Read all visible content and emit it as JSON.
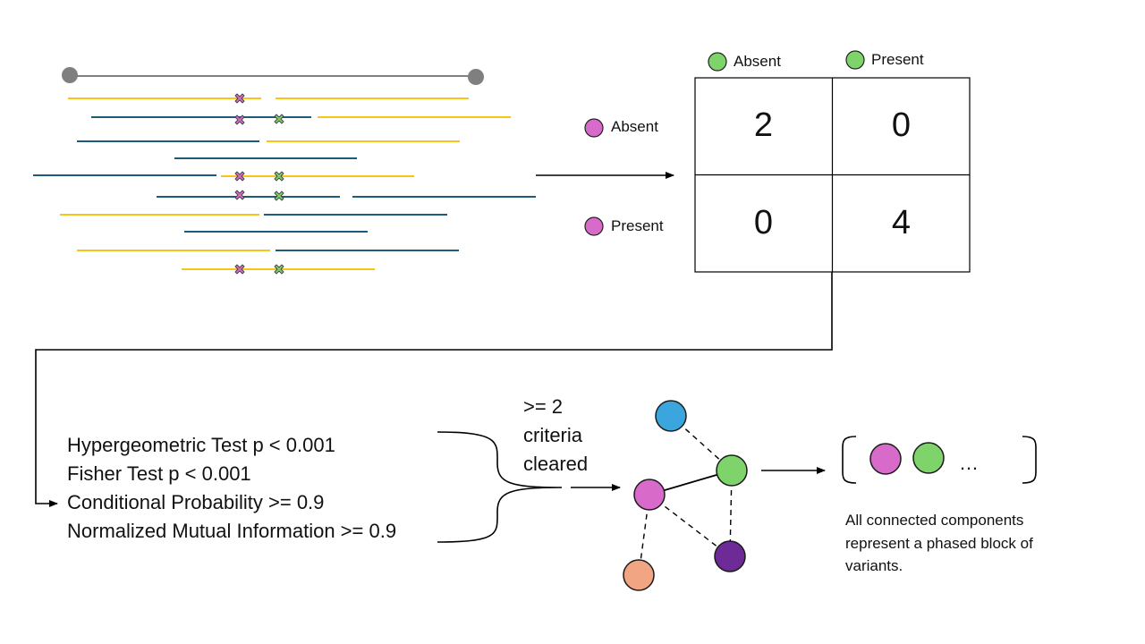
{
  "colors": {
    "yellow_read": "#F5C518",
    "blue_read": "#1F5A7A",
    "variant_a": "#D86BC9",
    "variant_b": "#7ED36B",
    "node_blue": "#3AA6DD",
    "node_purple": "#6E2A96",
    "node_orange": "#F2A582",
    "line": "#000000",
    "grey": "#7F7F7F"
  },
  "contingency": {
    "col_headers": [
      {
        "label": "Absent",
        "icon": "green-variant-dot"
      },
      {
        "label": "Present",
        "icon": "green-variant-dot"
      }
    ],
    "row_headers": [
      {
        "label": "Absent",
        "icon": "pink-variant-dot"
      },
      {
        "label": "Present",
        "icon": "pink-variant-dot"
      }
    ],
    "cells": [
      [
        "2",
        "0"
      ],
      [
        "0",
        "4"
      ]
    ]
  },
  "criteria": [
    "Hypergeometric Test p < 0.001",
    "Fisher Test p < 0.001",
    "Conditional Probability >= 0.9",
    "Normalized Mutual Information >= 0.9"
  ],
  "aggregation": {
    "line1": ">= 2",
    "line2": "criteria",
    "line3": "cleared"
  },
  "block": {
    "ellipsis": "…",
    "description": "All connected components represent a phased block of variants."
  }
}
